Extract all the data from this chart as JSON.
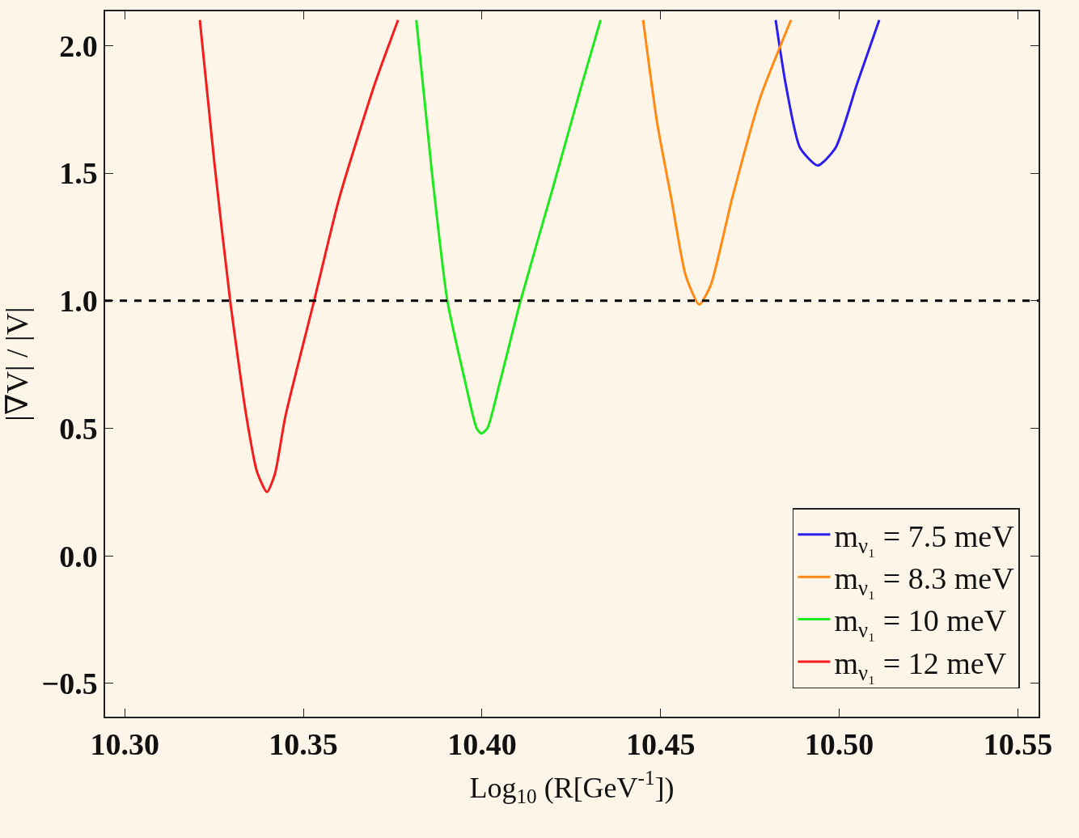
{
  "chart_data": {
    "type": "line",
    "xlabel": "Log$_{10}$ (R[GeV$^{-1}$])",
    "ylabel": "|∇V| / |V|",
    "xlim": [
      10.2945,
      10.5558
    ],
    "ylim": [
      -0.63,
      2.134
    ],
    "xticks": [
      {
        "value": 10.3,
        "label": "10.30"
      },
      {
        "value": 10.35,
        "label": "10.35"
      },
      {
        "value": 10.4,
        "label": "10.40"
      },
      {
        "value": 10.45,
        "label": "10.45"
      },
      {
        "value": 10.5,
        "label": "10.50"
      },
      {
        "value": 10.55,
        "label": "10.55"
      }
    ],
    "yticks": [
      {
        "value": -0.5,
        "label": "−0.5"
      },
      {
        "value": 0,
        "label": "0.0"
      },
      {
        "value": 0.5,
        "label": "0.5"
      },
      {
        "value": 1,
        "label": "1.0"
      },
      {
        "value": 1.5,
        "label": "1.5"
      },
      {
        "value": 2,
        "label": "2.0"
      }
    ],
    "series": [
      {
        "name": "m$_{ν₁}$ = 7.5 meV",
        "color": "#2a1ef0",
        "x": [
          10.4822,
          10.485,
          10.489,
          10.494,
          10.499,
          10.505,
          10.5112
        ],
        "values": [
          2.1,
          1.85,
          1.6,
          1.53,
          1.6,
          1.85,
          2.1
        ]
      },
      {
        "name": "m$_{ν₁}$ = 8.3 meV",
        "color": "#ff8a14",
        "x": [
          10.4451,
          10.449,
          10.453,
          10.457,
          10.4608,
          10.464,
          10.47,
          10.478,
          10.4865
        ],
        "values": [
          2.1,
          1.7,
          1.4,
          1.1,
          0.985,
          1.06,
          1.4,
          1.8,
          2.1
        ]
      },
      {
        "name": "m$_{ν₁}$ = 10 meV",
        "color": "#1ee81e",
        "x": [
          10.3816,
          10.386,
          10.3903,
          10.395,
          10.3985,
          10.3998,
          10.4015,
          10.405,
          10.4108,
          10.42,
          10.428,
          10.4332
        ],
        "values": [
          2.1,
          1.5,
          1.0,
          0.7,
          0.5,
          0.48,
          0.5,
          0.68,
          1.0,
          1.45,
          1.85,
          2.1
        ]
      },
      {
        "name": "m$_{ν₁}$ = 12 meV",
        "color": "#f51c1c",
        "x": [
          10.321,
          10.325,
          10.3295,
          10.334,
          10.337,
          10.3398,
          10.342,
          10.345,
          10.353,
          10.36,
          10.37,
          10.3765
        ],
        "values": [
          2.1,
          1.55,
          1.0,
          0.55,
          0.33,
          0.25,
          0.32,
          0.55,
          1.0,
          1.4,
          1.85,
          2.1
        ]
      }
    ],
    "ref_lines": [
      {
        "axis": "y",
        "value": 1,
        "color": "#000000",
        "line_style": "dashed"
      }
    ],
    "legend": "bottom right",
    "grid": false,
    "marker": "none",
    "line_style": "solid"
  }
}
